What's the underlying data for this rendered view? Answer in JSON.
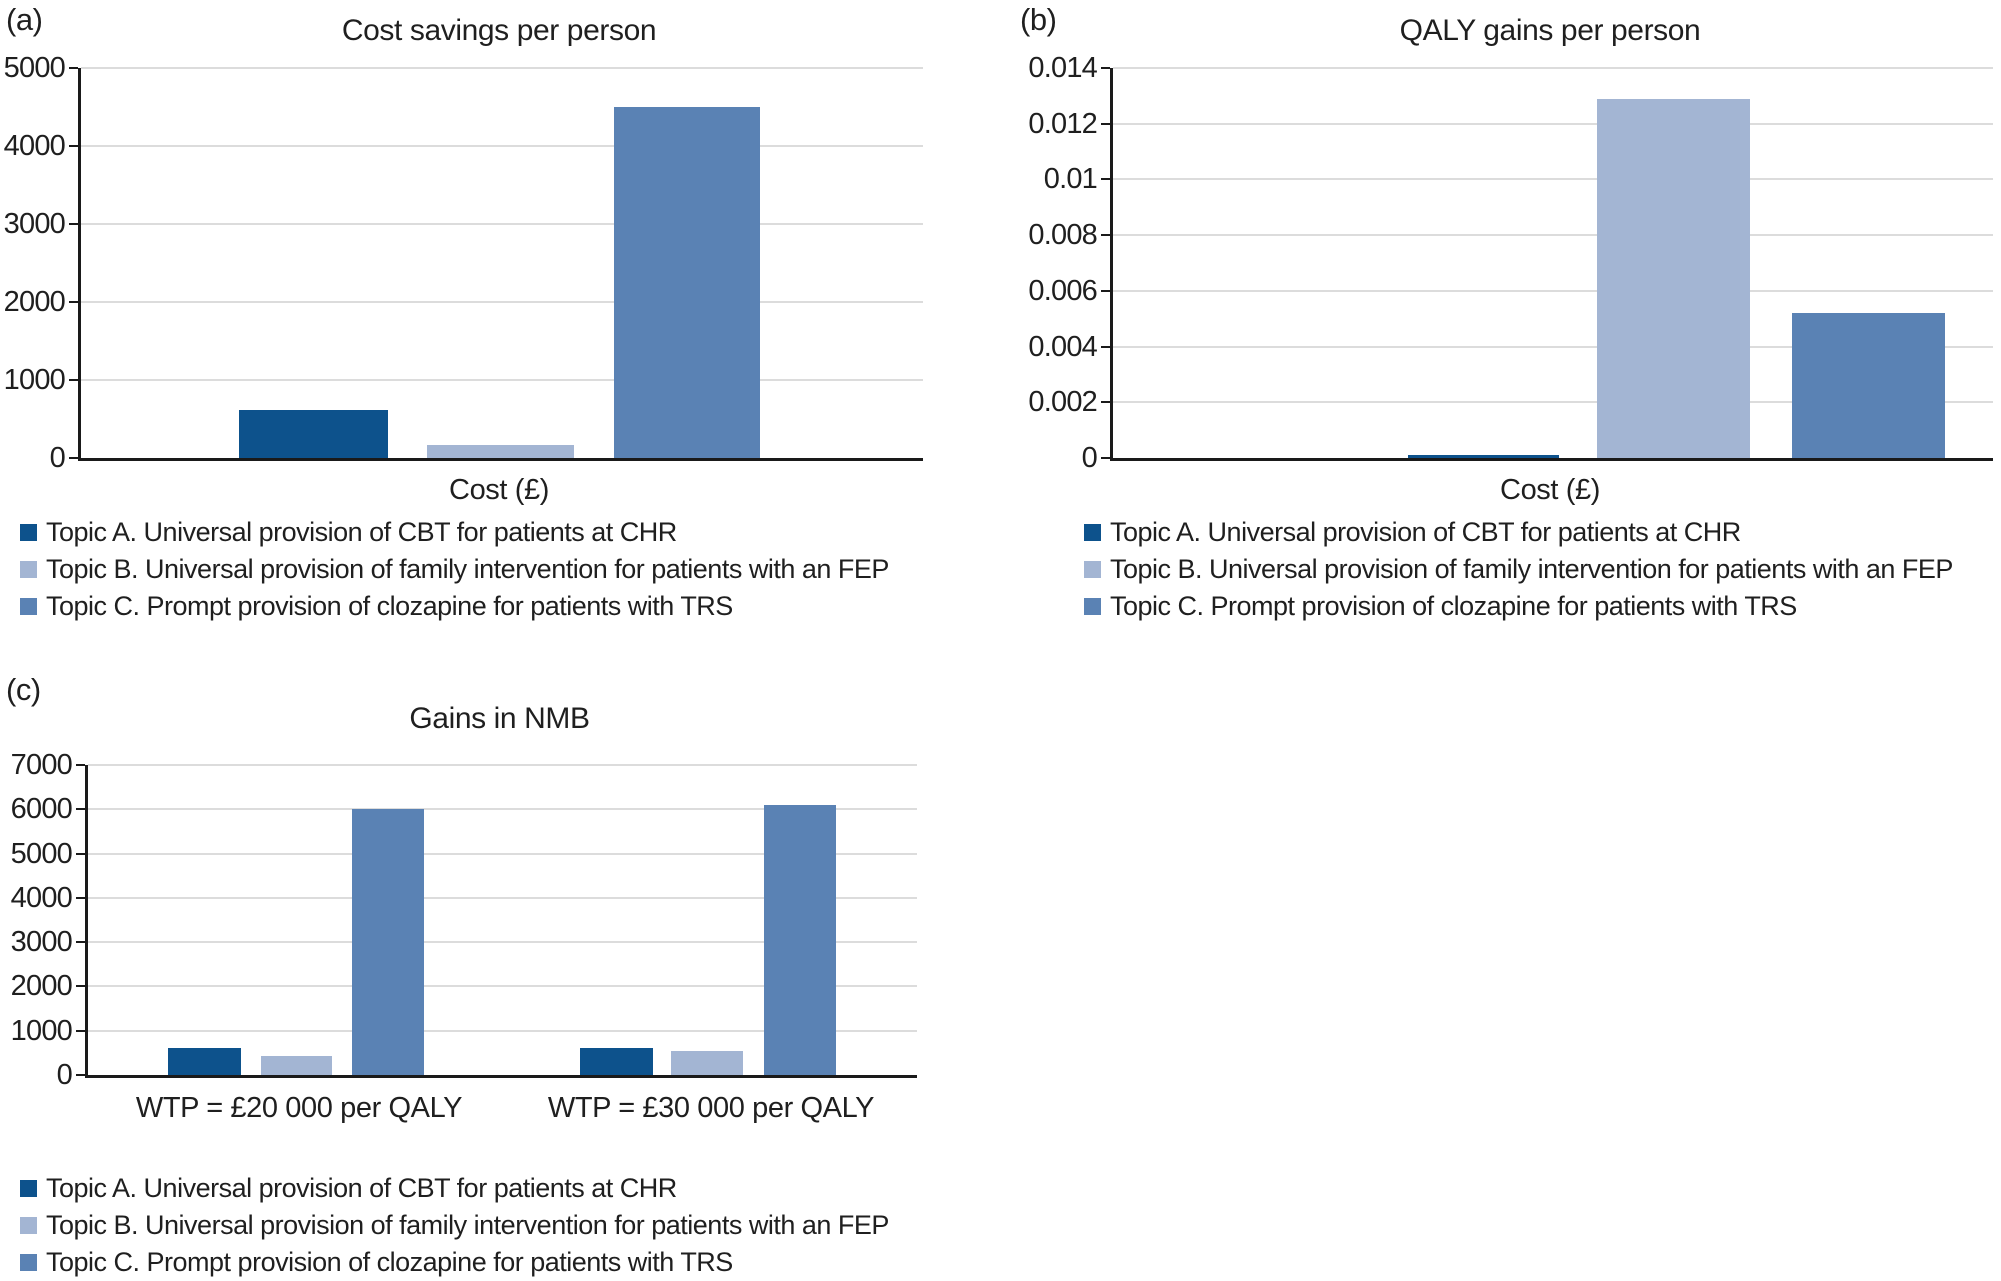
{
  "colors": {
    "topic_a": "#0D528C",
    "topic_b": "#A3B5D3",
    "topic_c": "#5A82B4",
    "gridline": "#DCDCDC",
    "axis": "#1A1A1A",
    "text": "#1F1F1F"
  },
  "chart_data": [
    {
      "panel_label": "(a)",
      "type": "bar",
      "title": "Cost savings per person",
      "xlabel": "Cost (£)",
      "categories": [],
      "ylim": [
        0,
        5000
      ],
      "ytick_labels": [
        "0",
        "1000",
        "2000",
        "3000",
        "4000",
        "5000"
      ],
      "grid": true,
      "legend_position": "bottom-left",
      "series": [
        {
          "topic": "topic_a",
          "name": "Topic A. Universal provision of CBT for patients at CHR",
          "values": [
            620
          ]
        },
        {
          "topic": "topic_b",
          "name": "Topic B. Universal provision of family intervention for patients with an FEP",
          "values": [
            170
          ]
        },
        {
          "topic": "topic_c",
          "name": "Topic C. Prompt provision of clozapine for patients with TRS",
          "values": [
            4500
          ]
        }
      ]
    },
    {
      "panel_label": "(b)",
      "type": "bar",
      "title": "QALY gains per person",
      "xlabel": "Cost (£)",
      "categories": [],
      "ylim": [
        0,
        0.014
      ],
      "ytick_labels": [
        "0",
        "0.002",
        "0.004",
        "0.006",
        "0.008",
        "0.01",
        "0.012",
        "0.014"
      ],
      "grid": true,
      "legend_position": "bottom-left",
      "series": [
        {
          "topic": "topic_a",
          "name": "Topic A. Universal provision of CBT for patients at CHR",
          "values": [
            0.0001
          ]
        },
        {
          "topic": "topic_b",
          "name": "Topic B. Universal provision of family intervention for patients with an FEP",
          "values": [
            0.0129
          ]
        },
        {
          "topic": "topic_c",
          "name": "Topic C. Prompt provision of clozapine for patients with TRS",
          "values": [
            0.0052
          ]
        }
      ]
    },
    {
      "panel_label": "(c)",
      "type": "bar",
      "title": "Gains in NMB",
      "xlabel": "",
      "categories": [
        "WTP = £20 000 per QALY",
        "WTP = £30 000 per QALY"
      ],
      "ylim": [
        0,
        7000
      ],
      "ytick_labels": [
        "0",
        "1000",
        "2000",
        "3000",
        "4000",
        "5000",
        "6000",
        "7000"
      ],
      "grid": true,
      "legend_position": "bottom-left",
      "series": [
        {
          "topic": "topic_a",
          "name": "Topic A. Universal provision of CBT for patients at CHR",
          "values": [
            620,
            620
          ]
        },
        {
          "topic": "topic_b",
          "name": "Topic B. Universal provision of family intervention for patients with an FEP",
          "values": [
            430,
            550
          ]
        },
        {
          "topic": "topic_c",
          "name": "Topic C. Prompt provision of clozapine for patients with TRS",
          "values": [
            6000,
            6090
          ]
        }
      ]
    }
  ]
}
